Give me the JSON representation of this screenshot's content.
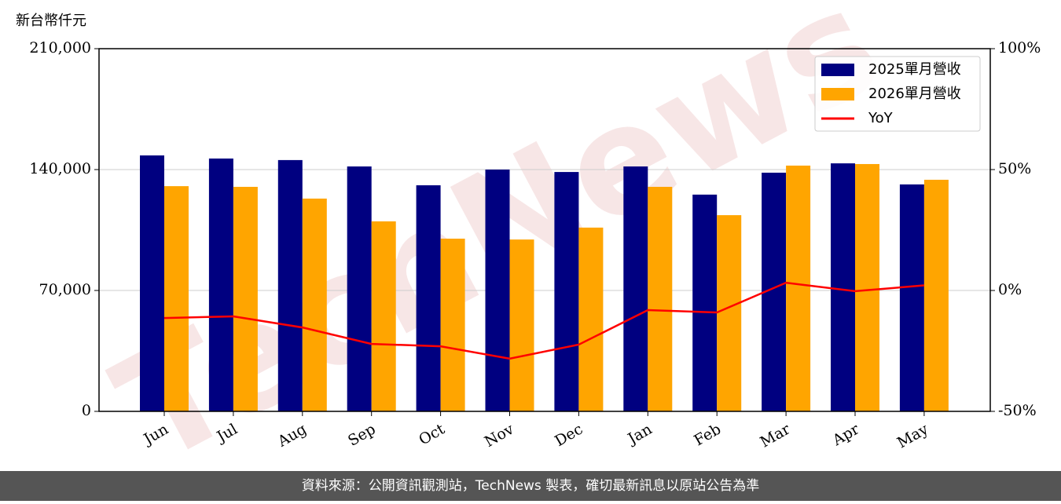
{
  "chart_data": {
    "type": "bar",
    "y_label": "新台幣仟元",
    "watermark": "TechNews",
    "footer": "資料來源：公開資訊觀測站，TechNews 製表，確切最新訊息以原站公告為準",
    "categories": [
      "Jun",
      "Jul",
      "Aug",
      "Sep",
      "Oct",
      "Nov",
      "Dec",
      "Jan",
      "Feb",
      "Mar",
      "Apr",
      "May"
    ],
    "series": [
      {
        "name": "2025單月營收",
        "color": "#000080",
        "values": [
          148200,
          146400,
          145500,
          141800,
          130900,
          140000,
          138600,
          141800,
          125500,
          138200,
          143600,
          131400
        ]
      },
      {
        "name": "2026單月營收",
        "color": "#ffa500",
        "values": [
          130400,
          130000,
          123200,
          110000,
          100000,
          99500,
          106400,
          130000,
          113600,
          142300,
          143200,
          134100
        ]
      },
      {
        "name": "YoY",
        "color": "#ff0000",
        "type": "line",
        "axis": "y2",
        "values": [
          -11.4,
          -10.7,
          -15.3,
          -22.1,
          -23.1,
          -28.2,
          -22.4,
          -8.1,
          -9.1,
          3.2,
          -0.3,
          2.1
        ]
      }
    ],
    "ylim": [
      0,
      210000
    ],
    "yticks": [
      0,
      {
        "value": 70000,
        "label": "70,000"
      },
      {
        "value": 140000,
        "label": "140,000"
      },
      {
        "value": 210000,
        "label": "210,000"
      }
    ],
    "y2lim": [
      -50,
      100
    ],
    "y2ticks": [
      {
        "value": -50,
        "label": "-50%"
      },
      {
        "value": 0,
        "label": "0%"
      },
      {
        "value": 50,
        "label": "50%"
      },
      {
        "value": 100,
        "label": "100%"
      }
    ],
    "grid": true,
    "legend": "upper right"
  }
}
